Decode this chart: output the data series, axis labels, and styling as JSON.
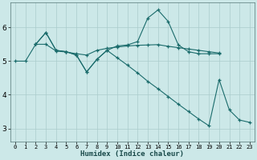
{
  "xlabel": "Humidex (Indice chaleur)",
  "background_color": "#cce8e8",
  "grid_color": "#aacccc",
  "line_color": "#1a6b6b",
  "xlim": [
    -0.5,
    23.5
  ],
  "ylim": [
    2.6,
    6.75
  ],
  "yticks": [
    3,
    4,
    5,
    6
  ],
  "xticks": [
    0,
    1,
    2,
    3,
    4,
    5,
    6,
    7,
    8,
    9,
    10,
    11,
    12,
    13,
    14,
    15,
    16,
    17,
    18,
    19,
    20,
    21,
    22,
    23
  ],
  "series": [
    {
      "x": [
        0,
        1,
        2,
        3,
        4,
        5,
        6,
        7,
        8,
        9,
        10,
        11,
        12,
        13,
        14,
        15,
        16,
        17,
        18,
        19,
        20
      ],
      "y": [
        5.0,
        5.0,
        5.5,
        5.5,
        5.3,
        5.27,
        5.22,
        5.18,
        5.32,
        5.38,
        5.42,
        5.45,
        5.47,
        5.48,
        5.49,
        5.44,
        5.4,
        5.36,
        5.32,
        5.28,
        5.24
      ]
    },
    {
      "x": [
        2,
        3,
        4,
        5,
        6,
        7,
        8,
        9,
        10,
        11,
        12,
        13,
        14,
        15,
        16,
        17,
        18,
        19,
        20
      ],
      "y": [
        5.5,
        5.85,
        5.32,
        5.28,
        5.18,
        4.68,
        5.05,
        5.32,
        5.45,
        5.48,
        5.58,
        6.28,
        6.52,
        6.18,
        5.48,
        5.28,
        5.22,
        5.22,
        5.22
      ]
    },
    {
      "x": [
        2,
        3,
        4,
        5,
        6,
        7,
        8,
        9,
        10,
        11,
        12,
        13,
        14,
        15,
        16,
        17,
        18,
        19,
        20,
        21,
        22,
        23
      ],
      "y": [
        5.5,
        5.85,
        5.32,
        5.28,
        5.18,
        4.68,
        5.05,
        5.32,
        5.1,
        4.88,
        4.65,
        4.4,
        4.18,
        3.95,
        3.72,
        3.5,
        3.28,
        3.08,
        4.45,
        3.55,
        3.25,
        3.18
      ]
    }
  ]
}
